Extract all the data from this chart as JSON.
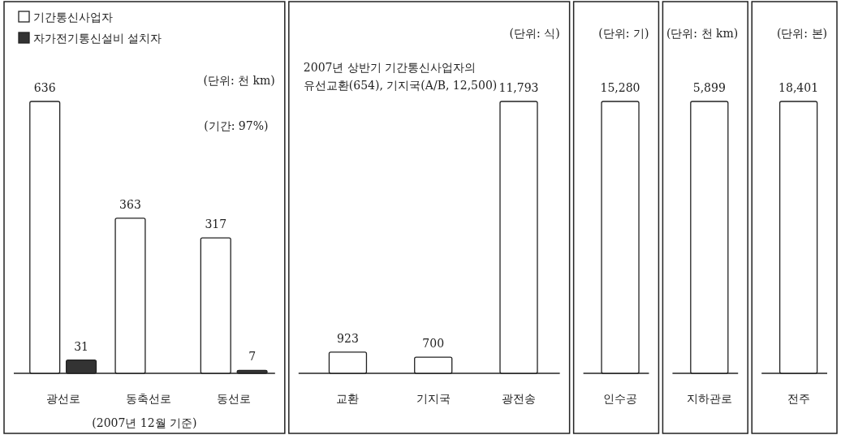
{
  "chart_data": [
    {
      "type": "bar",
      "categories": [
        "광선로",
        "동축선로",
        "동선로"
      ],
      "legend": "top left",
      "series": [
        {
          "name": "기간통신사업자",
          "color": "#ffffff",
          "values": [
            636,
            363,
            317
          ],
          "value_labels": [
            "636",
            "363",
            "317"
          ]
        },
        {
          "name": "자가전기통신설비 설치자",
          "color": "#333333",
          "values": [
            31,
            null,
            7
          ],
          "value_labels": [
            "31",
            null,
            "7"
          ]
        }
      ],
      "annotations": [
        "(단위: 천 km)",
        "(기간: 97%)",
        "(2007년 12월 기준)"
      ]
    },
    {
      "type": "bar",
      "categories": [
        "교환",
        "기지국",
        "광전송"
      ],
      "series": [
        {
          "color": "#ffffff",
          "values": [
            923,
            700,
            11793
          ],
          "value_labels": [
            "923",
            "700",
            "11,793"
          ]
        }
      ],
      "annotations": [
        "(단위: 식)",
        "2007년 상반기 기간통신사업자의 유선교환(654), 기지국(A/B, 12,500)"
      ]
    },
    {
      "type": "bar",
      "categories": [
        "인수공"
      ],
      "series": [
        {
          "color": "#ffffff",
          "values": [
            15280
          ],
          "value_labels": [
            "15,280"
          ]
        }
      ],
      "annotations": [
        "(단위: 기)"
      ]
    },
    {
      "type": "bar",
      "categories": [
        "지하관로"
      ],
      "series": [
        {
          "color": "#ffffff",
          "values": [
            5899
          ],
          "value_labels": [
            "5,899"
          ]
        }
      ],
      "annotations": [
        "(단위: 천 km)"
      ]
    },
    {
      "type": "bar",
      "categories": [
        "전주"
      ],
      "series": [
        {
          "color": "#ffffff",
          "values": [
            18401
          ],
          "value_labels": [
            "18,401"
          ]
        }
      ],
      "annotations": [
        "(단위: 본)"
      ]
    }
  ]
}
